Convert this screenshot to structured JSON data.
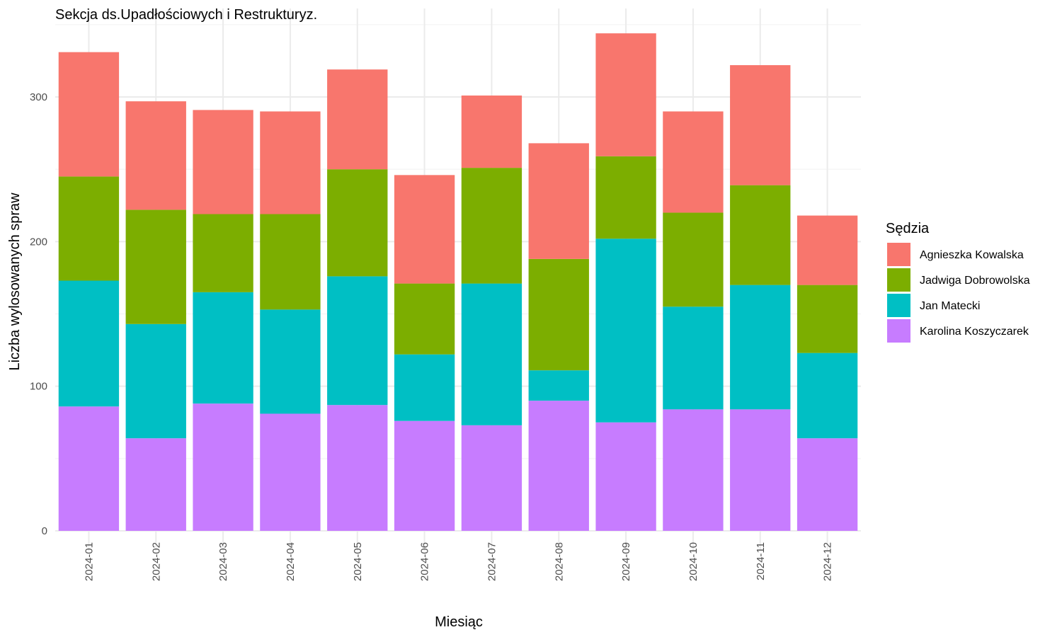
{
  "chart_data": {
    "type": "bar",
    "stacked": true,
    "title": "Sekcja ds.Upadłościowych i Restrukturyz.",
    "xlabel": "Miesiąc",
    "ylabel": "Liczba wylosowanych spraw",
    "ylim": [
      0,
      350
    ],
    "yticks": [
      0,
      100,
      200,
      300
    ],
    "grid": true,
    "legend_position": "right",
    "legend_title": "Sędzia",
    "categories": [
      "2024-01",
      "2024-02",
      "2024-03",
      "2024-04",
      "2024-05",
      "2024-06",
      "2024-07",
      "2024-08",
      "2024-09",
      "2024-10",
      "2024-11",
      "2024-12"
    ],
    "series": [
      {
        "name": "Karolina Koszyczarek",
        "color": "#C77CFF",
        "values": [
          86,
          64,
          88,
          81,
          87,
          76,
          73,
          90,
          75,
          84,
          84,
          64
        ]
      },
      {
        "name": "Jan Matecki",
        "color": "#00BFC4",
        "values": [
          87,
          79,
          77,
          72,
          89,
          46,
          98,
          21,
          127,
          71,
          86,
          59
        ]
      },
      {
        "name": "Jadwiga Dobrowolska",
        "color": "#7CAE00",
        "values": [
          72,
          79,
          54,
          66,
          74,
          49,
          80,
          77,
          57,
          65,
          69,
          47
        ]
      },
      {
        "name": "Agnieszka Kowalska",
        "color": "#F8766D",
        "values": [
          86,
          75,
          72,
          71,
          69,
          75,
          50,
          80,
          85,
          70,
          83,
          48
        ]
      }
    ],
    "legend_order": [
      "Agnieszka Kowalska",
      "Jadwiga Dobrowolska",
      "Jan Matecki",
      "Karolina Koszyczarek"
    ]
  }
}
